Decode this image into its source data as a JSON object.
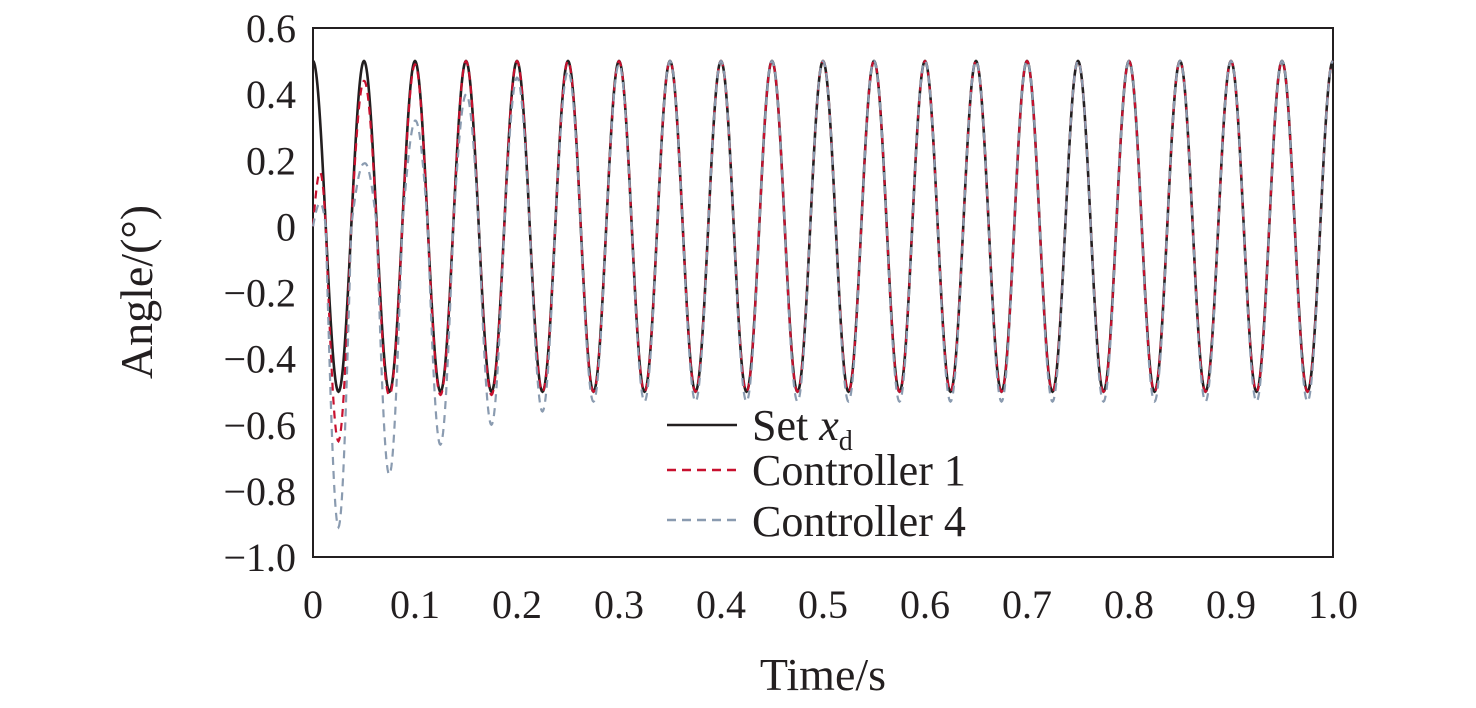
{
  "chart_data": {
    "type": "line",
    "xlabel": "Time/s",
    "ylabel": "Angle/(°)",
    "xlim": [
      0,
      1.0
    ],
    "ylim": [
      -1.0,
      0.6
    ],
    "x_ticks": [
      "0",
      "0.1",
      "0.2",
      "0.3",
      "0.4",
      "0.5",
      "0.6",
      "0.7",
      "0.8",
      "0.9",
      "1.0"
    ],
    "y_ticks": [
      "0.6",
      "0.4",
      "0.2",
      "0",
      "−0.2",
      "−0.4",
      "−0.6",
      "−0.8",
      "−1.0"
    ],
    "grid": false,
    "legend_position": "bottom-right",
    "series": [
      {
        "name": "Set x",
        "name_sub": "d",
        "style": "solid",
        "color": "#231f20",
        "x": [
          0,
          0.0125,
          0.025,
          0.0375,
          0.05,
          0.0625,
          0.075,
          0.0875,
          0.1,
          0.125,
          0.15,
          0.175,
          0.2,
          0.25,
          0.3,
          0.35,
          0.4,
          0.45,
          0.5,
          0.55,
          0.6,
          0.65,
          0.7,
          0.75,
          0.8,
          0.85,
          0.9,
          0.95,
          1.0
        ],
        "y": [
          0.5,
          0,
          -0.5,
          0,
          0.5,
          0,
          -0.5,
          0,
          0.5,
          -0.5,
          0.5,
          -0.5,
          0.5,
          0.5,
          0.5,
          0.5,
          0.5,
          0.5,
          0.5,
          0.5,
          0.5,
          0.5,
          0.5,
          0.5,
          0.5,
          0.5,
          0.5,
          0.5,
          0.5
        ]
      },
      {
        "name": "Controller 1",
        "style": "dashed",
        "color": "#c8102e",
        "x": [
          0,
          0.025,
          0.05,
          0.075,
          0.1,
          0.125,
          0.15,
          0.175,
          0.2,
          0.225,
          0.25,
          0.275,
          0.3,
          0.35,
          0.4,
          0.45,
          0.5,
          0.55,
          0.6,
          0.65,
          0.7,
          0.75,
          0.8,
          0.85,
          0.9,
          0.95,
          1.0
        ],
        "y": [
          0,
          -0.65,
          0.44,
          -0.51,
          0.49,
          -0.51,
          0.5,
          -0.51,
          0.5,
          -0.5,
          0.5,
          -0.5,
          0.5,
          0.5,
          0.5,
          0.5,
          0.5,
          0.5,
          0.5,
          0.5,
          0.5,
          0.5,
          0.5,
          0.5,
          0.5,
          0.5,
          0.5
        ]
      },
      {
        "name": "Controller 4",
        "style": "dashed",
        "color": "#8a9bb0",
        "x": [
          0,
          0.025,
          0.05,
          0.075,
          0.1,
          0.125,
          0.15,
          0.175,
          0.2,
          0.225,
          0.25,
          0.275,
          0.3,
          0.35,
          0.4,
          0.45,
          0.5,
          0.55,
          0.6,
          0.65,
          0.7,
          0.75,
          0.8,
          0.85,
          0.9,
          0.95,
          1.0
        ],
        "y": [
          0,
          -0.91,
          0.19,
          -0.75,
          0.32,
          -0.66,
          0.4,
          -0.6,
          0.45,
          -0.56,
          0.47,
          -0.53,
          0.49,
          0.5,
          0.5,
          0.5,
          0.5,
          0.5,
          0.5,
          0.5,
          0.5,
          0.5,
          0.5,
          0.5,
          0.5,
          0.5,
          0.5
        ]
      }
    ]
  }
}
